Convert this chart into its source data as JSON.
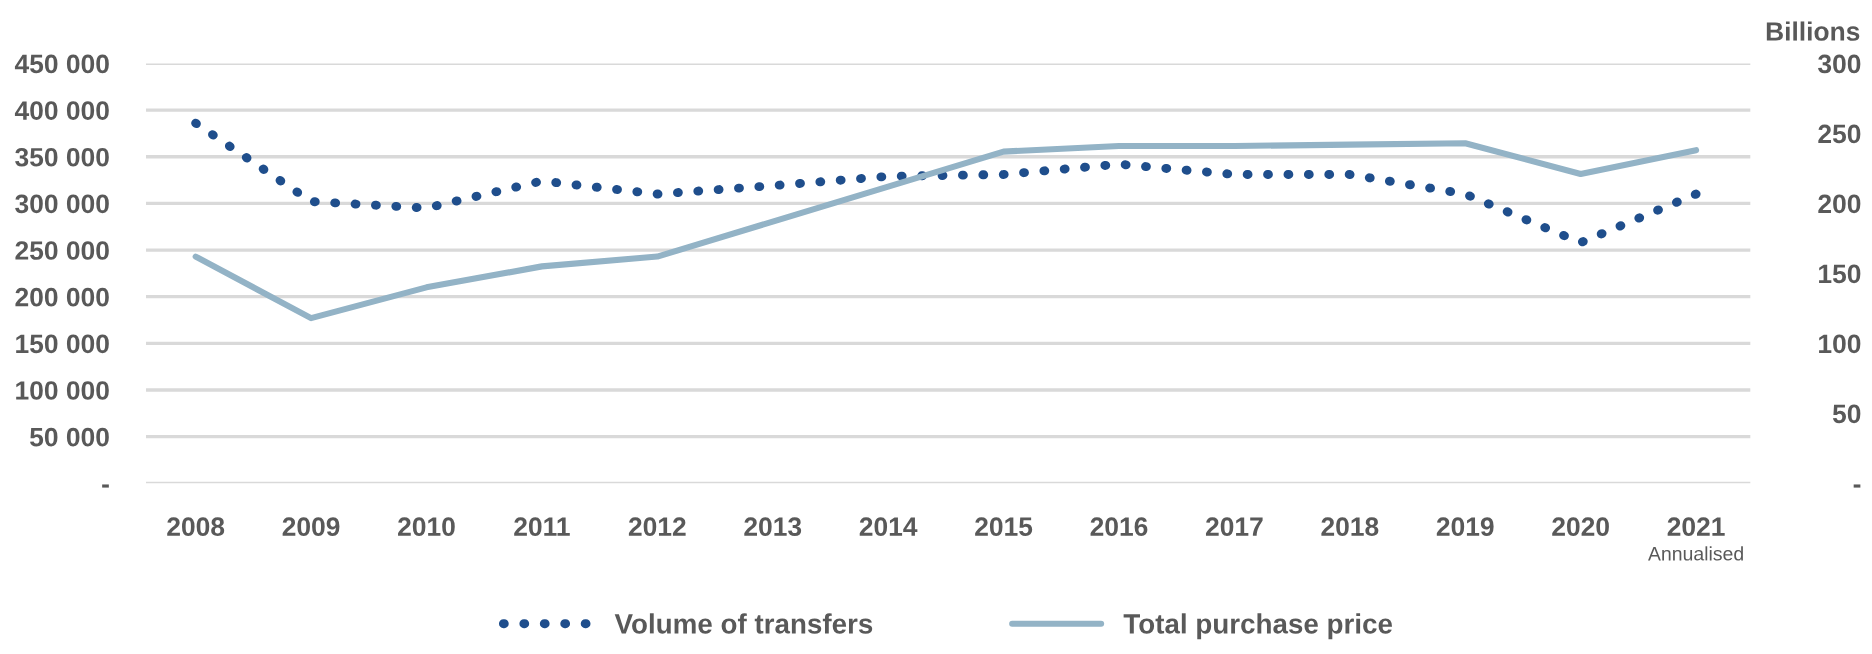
{
  "chart_data": {
    "type": "line",
    "categories": [
      "2008",
      "2009",
      "2010",
      "2011",
      "2012",
      "2013",
      "2014",
      "2015",
      "2016",
      "2017",
      "2018",
      "2019",
      "2020",
      "2021"
    ],
    "series": [
      {
        "name": "Volume of transfers",
        "color": "#1f4e8c",
        "line_style": "dotted",
        "values": [
          386000,
          302000,
          295000,
          324000,
          310000,
          319000,
          329000,
          331000,
          342000,
          331000,
          331000,
          310000,
          258000,
          310000
        ]
      },
      {
        "name": "Total purchase price",
        "color": "#93b3c6",
        "line_style": "solid",
        "axis": "y2",
        "values": [
          162,
          118,
          140,
          155,
          162,
          187,
          212,
          237,
          241,
          241,
          242,
          243,
          221,
          238
        ]
      }
    ],
    "ylim": [
      0,
      450000
    ],
    "yticks": [
      {
        "value": 0,
        "label": "-"
      },
      {
        "value": 50000,
        "label": "50 000"
      },
      {
        "value": 100000,
        "label": "100 000"
      },
      {
        "value": 150000,
        "label": "150 000"
      },
      {
        "value": 200000,
        "label": "200 000"
      },
      {
        "value": 250000,
        "label": "250 000"
      },
      {
        "value": 300000,
        "label": "300 000"
      },
      {
        "value": 350000,
        "label": "350 000"
      },
      {
        "value": 400000,
        "label": "400 000"
      },
      {
        "value": 450000,
        "label": "450 000"
      }
    ],
    "y2lim": [
      0,
      300
    ],
    "y2ticks": [
      {
        "value": 0,
        "label": "-"
      },
      50,
      100,
      150,
      200,
      250,
      300
    ],
    "y2label": "Billions",
    "annotations": [
      "Annualised"
    ],
    "grid": "y",
    "legend": "bottom"
  }
}
